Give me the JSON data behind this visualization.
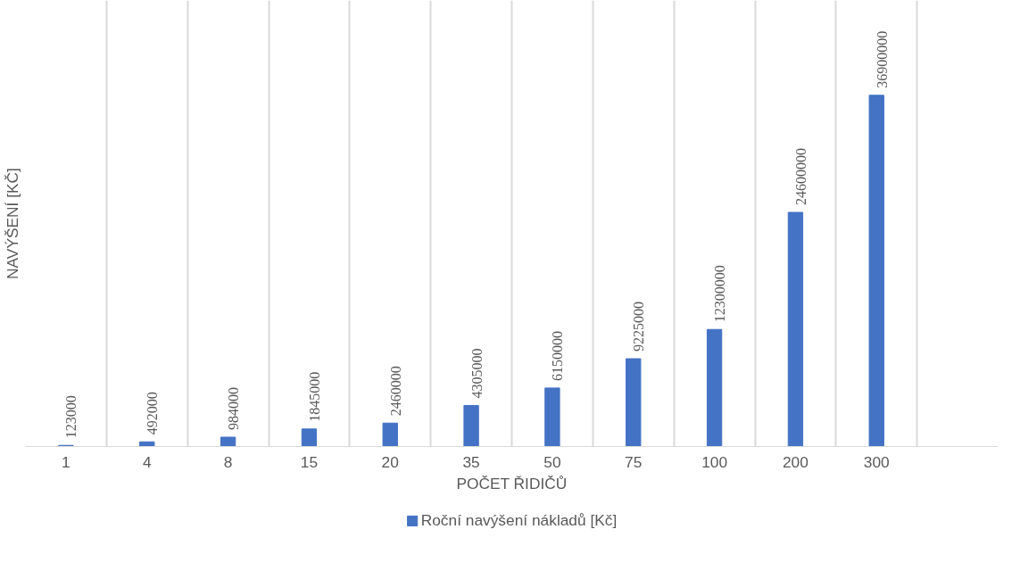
{
  "chart_data": {
    "type": "bar",
    "xlabel": "POČET ŘIDIČŮ",
    "ylabel": "NAVÝŠENÍ [KČ]",
    "categories": [
      "1",
      "4",
      "8",
      "15",
      "20",
      "35",
      "50",
      "75",
      "100",
      "200",
      "300",
      null
    ],
    "series": [
      {
        "name": "Roční navýšení nákladů [Kč]",
        "color": "#4472c4",
        "values": [
          123000,
          492000,
          984000,
          1845000,
          2460000,
          4305000,
          6150000,
          9225000,
          12300000,
          24600000,
          36900000,
          null
        ]
      }
    ],
    "data_labels": true,
    "grid": "x",
    "legend": "bottom"
  }
}
